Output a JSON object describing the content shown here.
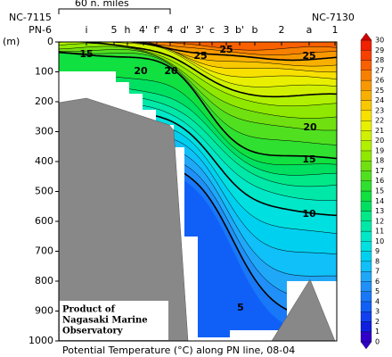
{
  "chart_data": {
    "type": "contour",
    "title": "Potential Temperature (°C) along PN line, 08-04",
    "y_label": "(m)",
    "left_station_code": "NC-7115",
    "right_station_code": "NC-7130",
    "scale_bar": "60 n. miles",
    "stations": [
      "PN-6",
      "i",
      "5",
      "h",
      "4'",
      "f'",
      "4",
      "d'",
      "3'",
      "c",
      "3",
      "b'",
      "b",
      "2",
      "a",
      "1"
    ],
    "ylim": [
      0,
      1000
    ],
    "y_inverted": true,
    "yticks": [
      0,
      100,
      200,
      300,
      400,
      500,
      600,
      700,
      800,
      900,
      1000
    ],
    "contour_labels": [
      15,
      20,
      20,
      25,
      25,
      25,
      20,
      15,
      10,
      5
    ],
    "credit": [
      "Product of",
      "Nagasaki Marine",
      "Observatory"
    ],
    "colorbar": {
      "ticks": [
        0,
        1,
        2,
        3,
        4,
        5,
        6,
        7,
        8,
        9,
        10,
        11,
        12,
        13,
        14,
        15,
        16,
        17,
        18,
        19,
        20,
        21,
        22,
        23,
        24,
        25,
        26,
        27,
        28,
        29,
        30
      ],
      "colors": [
        "#3000c8",
        "#1020e0",
        "#1040f0",
        "#1060f8",
        "#1878f8",
        "#2090f8",
        "#20a8f8",
        "#10c0f8",
        "#00d0f0",
        "#00e0e0",
        "#00e8c8",
        "#00e8a8",
        "#00e888",
        "#00e060",
        "#10e040",
        "#30e030",
        "#50e020",
        "#70e010",
        "#90e800",
        "#b0f000",
        "#d0f000",
        "#e8f000",
        "#f8e000",
        "#f8c800",
        "#f8b000",
        "#f89800",
        "#f88000",
        "#f86000",
        "#f84000",
        "#f02000",
        "#d00000"
      ]
    }
  }
}
